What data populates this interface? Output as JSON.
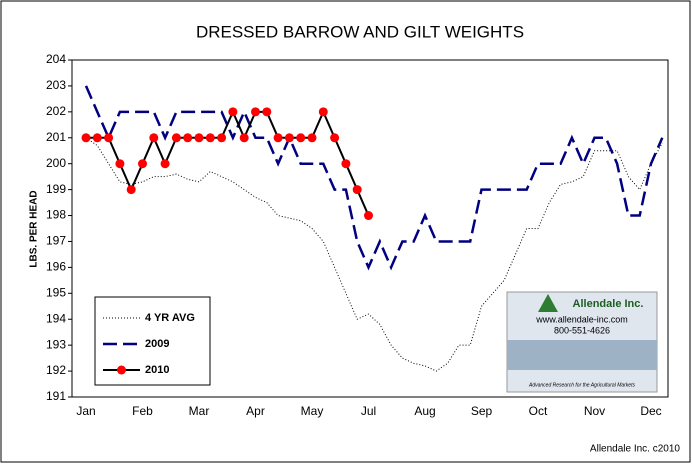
{
  "chart_data": {
    "type": "line",
    "title": "DRESSED BARROW AND GILT WEIGHTS",
    "y_label": "LBS. PER HEAD",
    "categories": [
      "Jan",
      null,
      null,
      null,
      null,
      "Feb",
      null,
      null,
      null,
      null,
      "Mar",
      null,
      null,
      null,
      null,
      "Apr",
      null,
      null,
      null,
      null,
      "May",
      null,
      null,
      null,
      null,
      "Jul",
      null,
      null,
      null,
      null,
      "Aug",
      null,
      null,
      null,
      null,
      "Sep",
      null,
      null,
      null,
      null,
      "Oct",
      null,
      null,
      null,
      null,
      "Nov",
      null,
      null,
      null,
      null,
      "Dec",
      null
    ],
    "series": [
      {
        "name": "4 YR AVG",
        "color": "#000000",
        "dash": "dotted",
        "values": [
          201,
          200.7,
          200,
          199.3,
          199.2,
          199.3,
          199.5,
          199.5,
          199.6,
          199.4,
          199.3,
          199.7,
          199.5,
          199.3,
          199,
          198.7,
          198.5,
          198,
          197.9,
          197.8,
          197.5,
          197,
          196,
          195,
          194,
          194.2,
          193.8,
          193,
          192.5,
          192.3,
          192.2,
          192,
          192.3,
          193,
          193,
          194.5,
          195,
          195.5,
          196.5,
          197.5,
          197.5,
          198.5,
          199.2,
          199.3,
          199.5,
          200.5,
          200.5,
          200.5,
          199.5,
          199,
          200,
          200.8
        ]
      },
      {
        "name": "2009",
        "color": "#000080",
        "dash": "dashed",
        "values": [
          203,
          202,
          201,
          202,
          202,
          202,
          202,
          201,
          202,
          202,
          202,
          202,
          202,
          201,
          202,
          201,
          201,
          200,
          201,
          200,
          200,
          200,
          199,
          199,
          197,
          196,
          197,
          196,
          197,
          197,
          198,
          197,
          197,
          197,
          197,
          199,
          199,
          199,
          199,
          199,
          200,
          200,
          200,
          201,
          200,
          201,
          201,
          200,
          198,
          198,
          200,
          201
        ]
      },
      {
        "name": "2010",
        "color": "#000000",
        "marker_color": "#ff0000",
        "dash": "solid",
        "values": [
          201,
          201,
          201,
          200,
          199,
          200,
          201,
          200,
          201,
          201,
          201,
          201,
          201,
          202,
          201,
          202,
          202,
          201,
          201,
          201,
          201,
          202,
          201,
          200,
          199,
          198,
          null,
          null,
          null,
          null,
          null,
          null,
          null,
          null,
          null,
          null,
          null,
          null,
          null,
          null,
          null,
          null,
          null,
          null,
          null,
          null,
          null,
          null,
          null,
          null,
          null,
          null
        ]
      }
    ],
    "ylim": [
      191,
      204
    ],
    "yticks": [
      191,
      192,
      193,
      194,
      195,
      196,
      197,
      198,
      199,
      200,
      201,
      202,
      203,
      204
    ],
    "grid": false,
    "legend": "lower left"
  },
  "logo": {
    "name": "Allendale Inc.",
    "url": "www.allendale-inc.com",
    "phone": "800-551-4626",
    "tagline": "Advanced Research for the Agricultural Markets"
  },
  "credit": "Allendale Inc. c2010"
}
